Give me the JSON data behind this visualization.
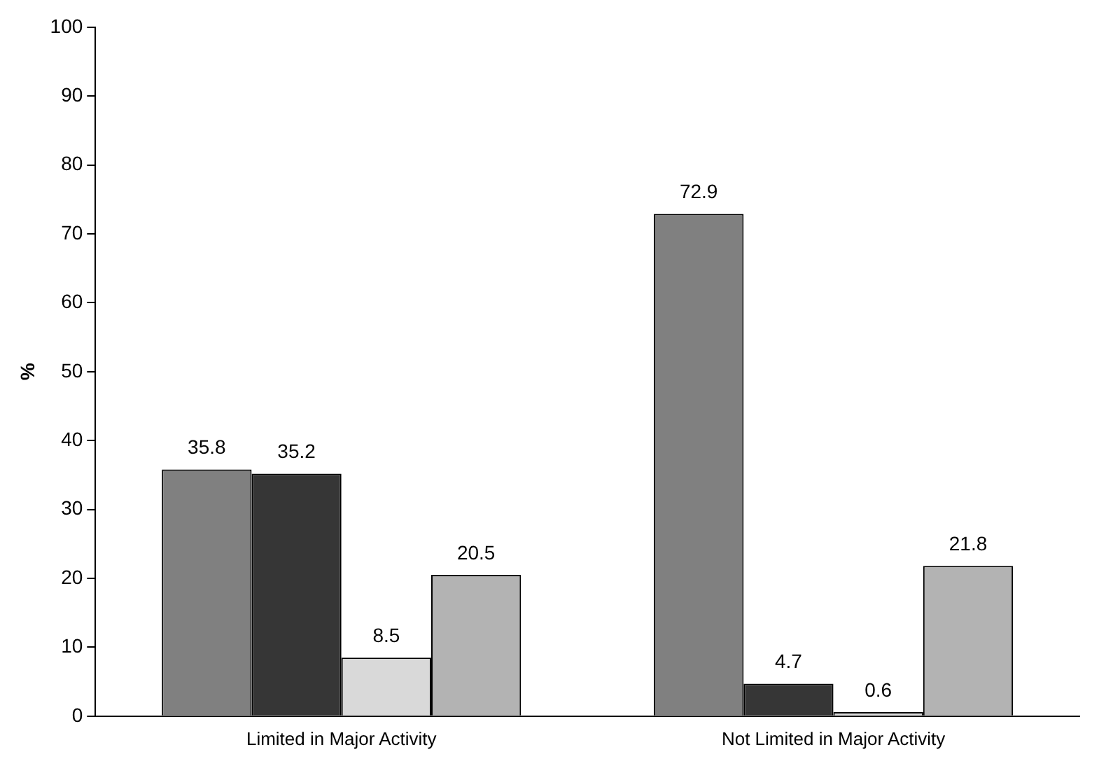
{
  "chart_data": {
    "type": "bar",
    "ylabel": "%",
    "categories": [
      "Limited in Major Activity",
      "Not Limited in Major Activity"
    ],
    "series": [
      {
        "color": "#808080",
        "values": [
          35.8,
          72.9
        ]
      },
      {
        "color": "#363636",
        "values": [
          35.2,
          4.7
        ]
      },
      {
        "color": "#d9d9d9",
        "values": [
          8.5,
          0.6
        ]
      },
      {
        "color": "#b3b3b3",
        "values": [
          20.5,
          21.8
        ]
      }
    ],
    "ylim": [
      0,
      100
    ],
    "yticks": [
      0,
      10,
      20,
      30,
      40,
      50,
      60,
      70,
      80,
      90,
      100
    ],
    "grid": false,
    "legend": false,
    "data_labels": true
  }
}
